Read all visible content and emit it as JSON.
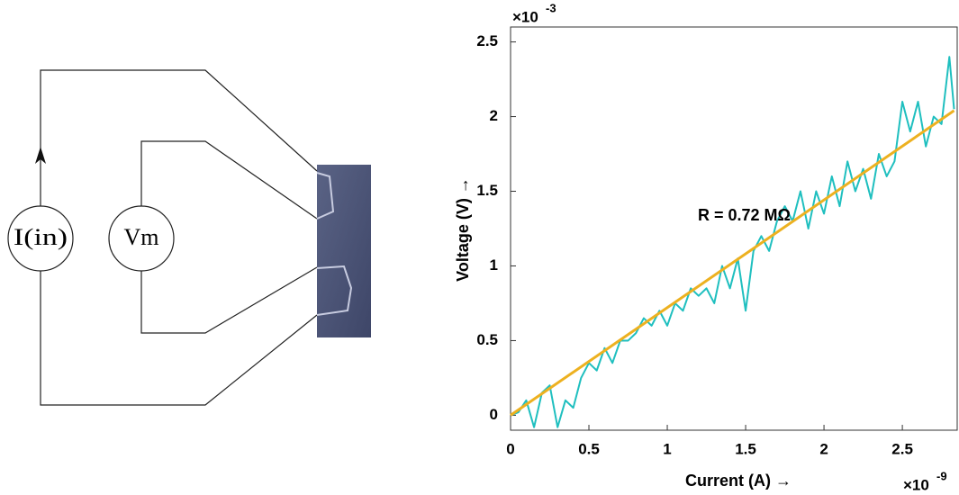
{
  "diagram": {
    "current_source": "I(in)",
    "voltmeter": "Vm"
  },
  "chart_data": {
    "type": "line",
    "annotation": "R = 0.72 MΩ",
    "x_label": "Current (A) →",
    "y_label": "Voltage (V) →",
    "x_multiplier": {
      "base": "×10",
      "exponent": "-9"
    },
    "y_multiplier": {
      "base": "×10",
      "exponent": "-3"
    },
    "xlim": [
      0,
      2.85
    ],
    "ylim": [
      -0.1,
      2.6
    ],
    "xticks": [
      0,
      0.5,
      1,
      1.5,
      2,
      2.5
    ],
    "yticks": [
      0,
      0.5,
      1,
      1.5,
      2,
      2.5
    ],
    "grid": false,
    "series": [
      {
        "color": "#1fbfbf",
        "x": [
          0,
          0.05,
          0.1,
          0.15,
          0.2,
          0.25,
          0.3,
          0.35,
          0.4,
          0.45,
          0.5,
          0.55,
          0.6,
          0.65,
          0.7,
          0.75,
          0.8,
          0.85,
          0.9,
          0.95,
          1.0,
          1.05,
          1.1,
          1.15,
          1.2,
          1.25,
          1.3,
          1.35,
          1.4,
          1.45,
          1.5,
          1.55,
          1.6,
          1.65,
          1.7,
          1.75,
          1.8,
          1.85,
          1.9,
          1.95,
          2.0,
          2.05,
          2.1,
          2.15,
          2.2,
          2.25,
          2.3,
          2.35,
          2.4,
          2.45,
          2.5,
          2.55,
          2.6,
          2.65,
          2.7,
          2.75,
          2.8,
          2.83
        ],
        "values": [
          0,
          0.02,
          0.1,
          -0.08,
          0.15,
          0.2,
          -0.08,
          0.1,
          0.05,
          0.25,
          0.35,
          0.3,
          0.45,
          0.35,
          0.5,
          0.5,
          0.55,
          0.65,
          0.6,
          0.7,
          0.6,
          0.75,
          0.7,
          0.85,
          0.8,
          0.85,
          0.75,
          1.0,
          0.85,
          1.05,
          0.7,
          1.1,
          1.2,
          1.1,
          1.3,
          1.4,
          1.3,
          1.5,
          1.25,
          1.5,
          1.35,
          1.6,
          1.4,
          1.7,
          1.5,
          1.65,
          1.45,
          1.75,
          1.6,
          1.7,
          2.1,
          1.9,
          2.1,
          1.8,
          2.0,
          1.95,
          2.4,
          2.05
        ]
      },
      {
        "color": "#edb120",
        "x": [
          0,
          2.83
        ],
        "values": [
          0,
          2.04
        ]
      }
    ]
  }
}
